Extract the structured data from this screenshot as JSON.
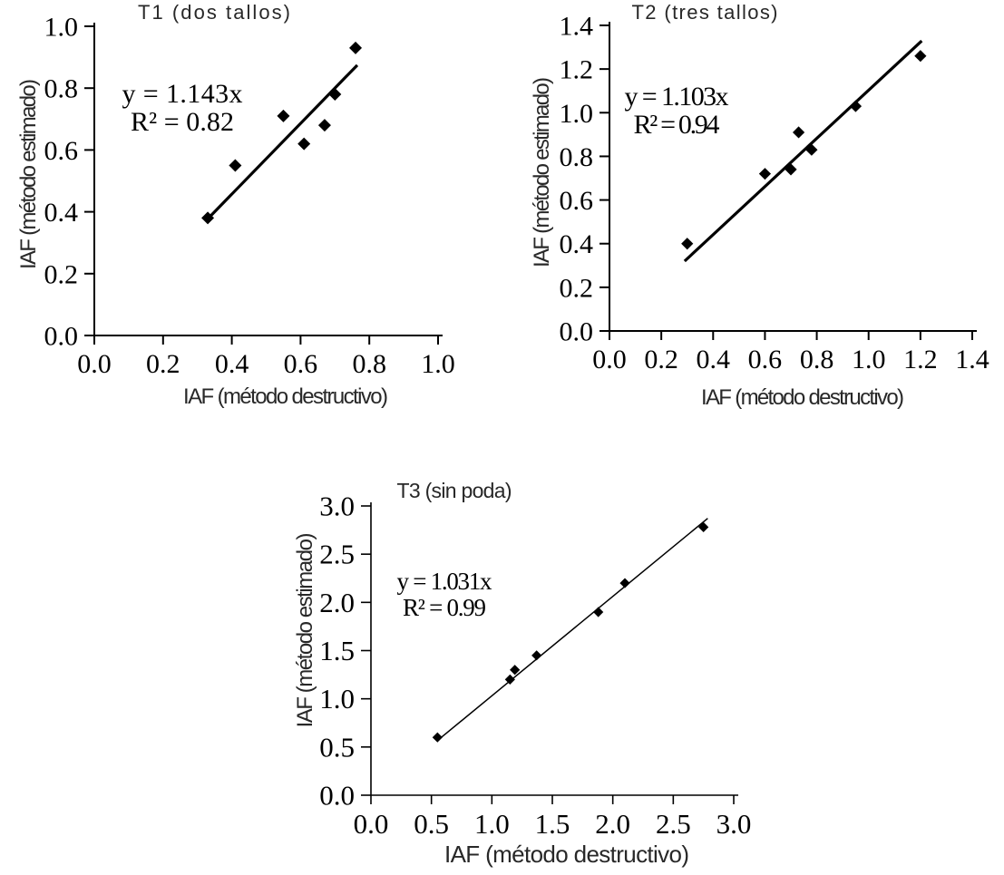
{
  "figure": {
    "background": "#ffffff",
    "text_color": "#000000",
    "title_color": "#282828",
    "marker_color": "#000000",
    "line_color": "#000000"
  },
  "chart_data": [
    {
      "type": "scatter",
      "title": "T1 (dos tallos)",
      "equation": "y = 1.143x",
      "r_squared": "R² = 0.82",
      "xlabel": "IAF (método destructivo)",
      "ylabel": "IAF (método estimado)",
      "xlim": [
        0,
        1.0
      ],
      "ylim": [
        0,
        1.0
      ],
      "xticks": [
        "0.0",
        "0.2",
        "0.4",
        "0.6",
        "0.8",
        "1.0"
      ],
      "yticks": [
        "0.0",
        "0.2",
        "0.4",
        "0.6",
        "0.8",
        "1.0"
      ],
      "points": [
        [
          0.33,
          0.38
        ],
        [
          0.41,
          0.55
        ],
        [
          0.55,
          0.71
        ],
        [
          0.61,
          0.62
        ],
        [
          0.67,
          0.68
        ],
        [
          0.7,
          0.78
        ],
        [
          0.76,
          0.93
        ]
      ],
      "trendline": {
        "slope": 1.143,
        "intercept": 0,
        "x_start": 0.33,
        "x_end": 0.765
      },
      "marker": "diamond",
      "legend": "none",
      "grid": false
    },
    {
      "type": "scatter",
      "title": "T2 (tres tallos)",
      "equation": "y = 1.103x",
      "r_squared": "R² = 0.94",
      "xlabel": "IAF (método destructivo)",
      "ylabel": "IAF (método estimado)",
      "xlim": [
        0,
        1.4
      ],
      "ylim": [
        0,
        1.4
      ],
      "xticks": [
        "0.0",
        "0.2",
        "0.4",
        "0.6",
        "0.8",
        "1.0",
        "1.2",
        "1.4"
      ],
      "yticks": [
        "0.0",
        "0.2",
        "0.4",
        "0.6",
        "0.8",
        "1.0",
        "1.2",
        "1.4"
      ],
      "points": [
        [
          0.3,
          0.4
        ],
        [
          0.6,
          0.72
        ],
        [
          0.7,
          0.74
        ],
        [
          0.73,
          0.91
        ],
        [
          0.78,
          0.83
        ],
        [
          0.95,
          1.03
        ],
        [
          1.2,
          1.26
        ]
      ],
      "trendline": {
        "slope": 1.103,
        "intercept": 0,
        "x_start": 0.29,
        "x_end": 1.205
      },
      "marker": "diamond",
      "legend": "none",
      "grid": false
    },
    {
      "type": "scatter",
      "title": "T3 (sin poda)",
      "equation": "y = 1.031x",
      "r_squared": "R² = 0.99",
      "xlabel": "IAF (método destructivo)",
      "ylabel": "IAF (método estimado)",
      "xlim": [
        0,
        3.0
      ],
      "ylim": [
        0,
        3.0
      ],
      "xticks": [
        "0.0",
        "0.5",
        "1.0",
        "1.5",
        "2.0",
        "2.5",
        "3.0"
      ],
      "yticks": [
        "0.0",
        "0.5",
        "1.0",
        "1.5",
        "2.0",
        "2.5",
        "3.0"
      ],
      "points": [
        [
          0.55,
          0.6
        ],
        [
          1.15,
          1.2
        ],
        [
          1.19,
          1.3
        ],
        [
          1.37,
          1.45
        ],
        [
          1.88,
          1.9
        ],
        [
          2.1,
          2.2
        ],
        [
          2.75,
          2.78
        ]
      ],
      "trendline": {
        "slope": 1.031,
        "intercept": 0,
        "x_start": 0.55,
        "x_end": 2.785
      },
      "marker": "diamond",
      "legend": "none",
      "grid": false
    }
  ]
}
